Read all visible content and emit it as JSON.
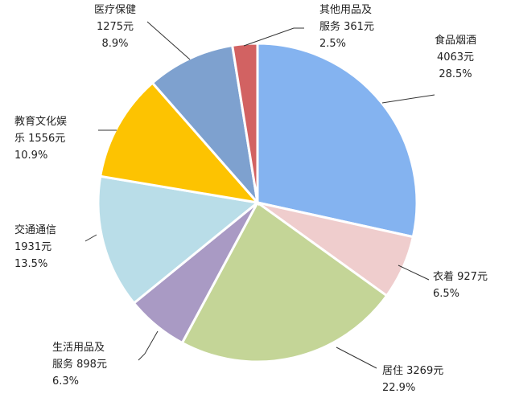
{
  "chart_data": {
    "type": "pie",
    "start_angle_deg": 0,
    "direction": "clockwise",
    "slices": [
      {
        "label_lines": [
          "食品烟酒",
          "4063元",
          "28.5%"
        ],
        "value": 4063,
        "percent": 28.5,
        "color": "#84B3F0"
      },
      {
        "label_lines": [
          "衣着 927元",
          "6.5%"
        ],
        "value": 927,
        "percent": 6.5,
        "color": "#EFCDCD"
      },
      {
        "label_lines": [
          "居住 3269元",
          "22.9%"
        ],
        "value": 3269,
        "percent": 22.9,
        "color": "#C4D597"
      },
      {
        "label_lines": [
          "生活用品及",
          "服务 898元",
          "6.3%"
        ],
        "value": 898,
        "percent": 6.3,
        "color": "#A99AC4"
      },
      {
        "label_lines": [
          "交通通信",
          "1931元",
          "13.5%"
        ],
        "value": 1931,
        "percent": 13.5,
        "color": "#B9DDE8"
      },
      {
        "label_lines": [
          "教育文化娱",
          "乐 1556元",
          "10.9%"
        ],
        "value": 1556,
        "percent": 10.9,
        "color": "#FDC301"
      },
      {
        "label_lines": [
          "医疗保健",
          "1275元",
          "8.9%"
        ],
        "value": 1275,
        "percent": 8.9,
        "color": "#7EA1CF"
      },
      {
        "label_lines": [
          "其他用品及",
          "服务 361元",
          "2.5%"
        ],
        "value": 361,
        "percent": 2.5,
        "color": "#D26262"
      }
    ]
  }
}
